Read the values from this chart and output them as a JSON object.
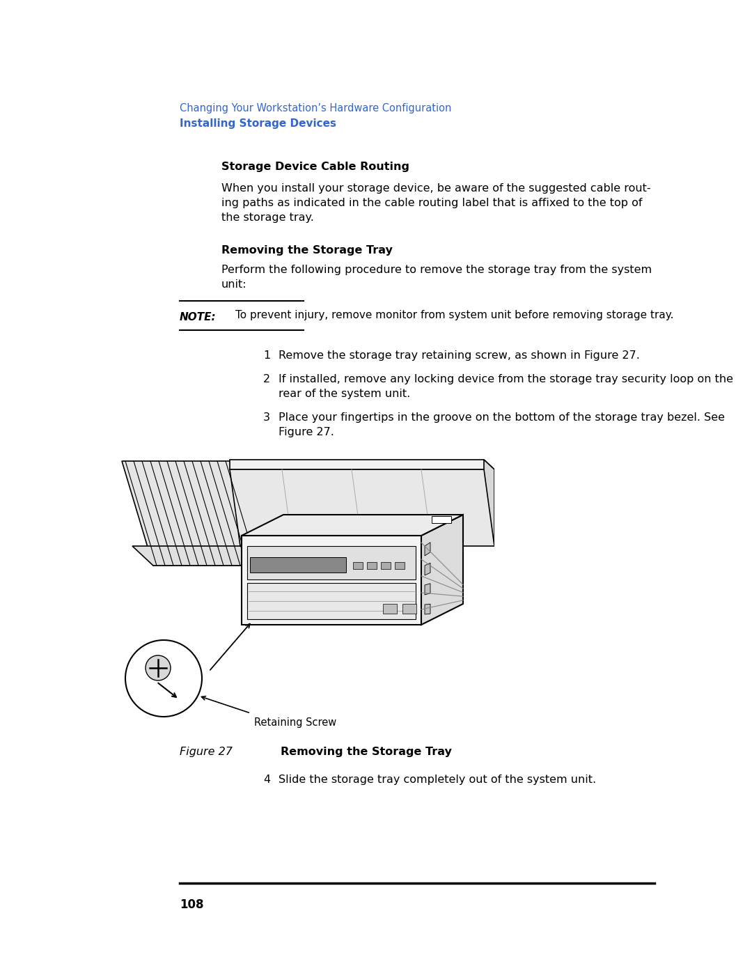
{
  "bg_color": "#ffffff",
  "header_line1": "Changing Your Workstation’s Hardware Configuration",
  "header_line1_color": "#3366cc",
  "header_line2": "Installing Storage Devices",
  "header_line2_color": "#3366cc",
  "section1_title": "Storage Device Cable Routing",
  "section1_body_line1": "When you install your storage device, be aware of the suggested cable rout-",
  "section1_body_line2": "ing paths as indicated in the cable routing label that is affixed to the top of",
  "section1_body_line3": "the storage tray.",
  "section2_title": "Removing the Storage Tray",
  "section2_body_line1": "Perform the following procedure to remove the storage tray from the system",
  "section2_body_line2": "unit:",
  "note_label": "NOTE:",
  "note_text": "To prevent injury, remove monitor from system unit before removing storage tray.",
  "step1": "Remove the storage tray retaining screw, as shown in Figure 27.",
  "step2_line1": "If installed, remove any locking device from the storage tray security loop on the",
  "step2_line2": "rear of the system unit.",
  "step3_line1": "Place your fingertips in the groove on the bottom of the storage tray bezel. See",
  "step3_line2": "Figure 27.",
  "step4": "Slide the storage tray completely out of the system unit.",
  "figure_label": "Figure 27",
  "figure_caption": "Removing the Storage Tray",
  "page_number": "108",
  "retaining_screw_label": "Retaining Screw",
  "text_color": "#000000",
  "bg_color2": "#ffffff"
}
